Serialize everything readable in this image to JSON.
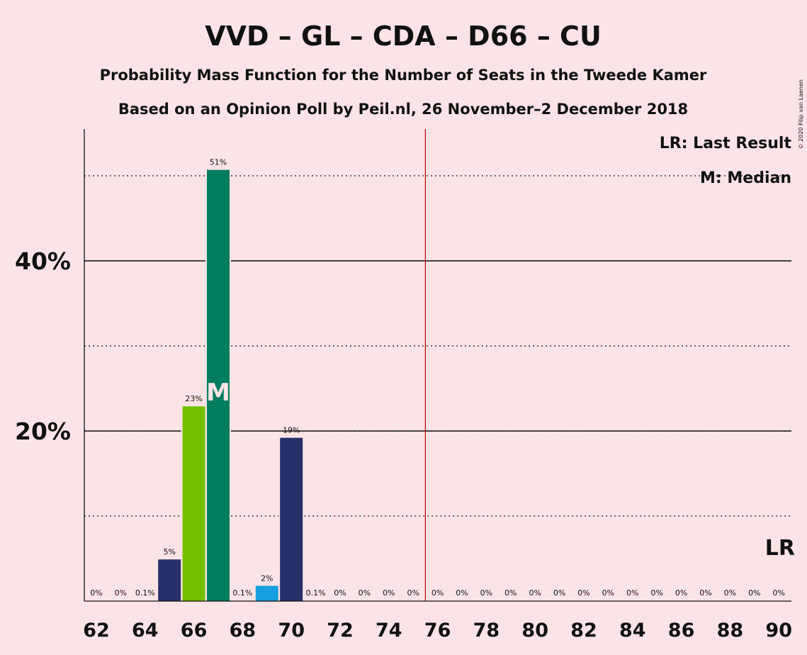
{
  "chart_data": {
    "type": "bar",
    "title": "VVD – GL – CDA – D66 – CU",
    "subtitle": "Probability Mass Function for the Number of Seats in the Tweede Kamer",
    "subtitle2": "Based on an Opinion Poll by Peil.nl, 26 November–2 December 2018",
    "copyright": "© 2020 Filip van Laenen",
    "legend": {
      "lr": "LR: Last Result",
      "median": "M: Median",
      "position": "top-right"
    },
    "x": [
      62,
      63,
      64,
      65,
      66,
      67,
      68,
      69,
      70,
      71,
      72,
      73,
      74,
      75,
      76,
      77,
      78,
      79,
      80,
      81,
      82,
      83,
      84,
      85,
      86,
      87,
      88,
      89,
      90
    ],
    "values": [
      0,
      0,
      0.1,
      5,
      23,
      51,
      0.1,
      2,
      19,
      0.1,
      0,
      0,
      0,
      0,
      0,
      0,
      0,
      0,
      0,
      0,
      0,
      0,
      0,
      0,
      0,
      0,
      0,
      0,
      0
    ],
    "data_labels": [
      "0%",
      "0%",
      "0.1%",
      "5%",
      "23%",
      "51%",
      "0.1%",
      "2%",
      "19%",
      "0.1%",
      "0%",
      "0%",
      "0%",
      "0%",
      "0%",
      "0%",
      "0%",
      "0%",
      "0%",
      "0%",
      "0%",
      "0%",
      "0%",
      "0%",
      "0%",
      "0%",
      "0%",
      "0%",
      "0%"
    ],
    "display_heights": [
      0,
      0,
      0,
      4.9,
      22.9,
      50.7,
      0,
      1.8,
      19.2,
      0,
      0,
      0,
      0,
      0,
      0,
      0,
      0,
      0,
      0,
      0,
      0,
      0,
      0,
      0,
      0,
      0,
      0,
      0,
      0
    ],
    "bar_colors": {
      "65": "#27306b",
      "66": "#74bf00",
      "67": "#007c5e",
      "69": "#16a0e0",
      "70": "#27306b"
    },
    "xticks": [
      62,
      64,
      66,
      68,
      70,
      72,
      74,
      76,
      78,
      80,
      82,
      84,
      86,
      88,
      90
    ],
    "yticks": [
      {
        "value": 20,
        "label": "20%"
      },
      {
        "value": 40,
        "label": "40%"
      }
    ],
    "dotted_grid": [
      10,
      30,
      50
    ],
    "ylim": [
      0,
      55.5
    ],
    "majority_line": 75.5,
    "median": {
      "seat": 67,
      "label": "M"
    },
    "last_result": {
      "label": "LR"
    },
    "colors": {
      "majority": "#b00000",
      "axis": "#111111"
    }
  }
}
